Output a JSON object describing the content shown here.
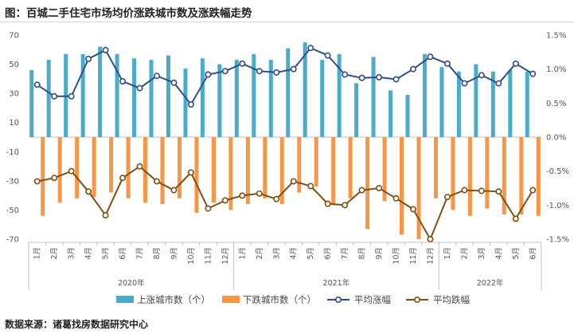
{
  "title": "图：百城二手住宅市场均价涨跌城市数及涨跌幅走势",
  "source": "数据来源：诸葛找房数据研究中心",
  "colors": {
    "up_bar": "#4aacc6",
    "down_bar": "#f79646",
    "avg_up_line": "#2f4f82",
    "avg_down_line": "#7f4f12"
  },
  "chart_data": {
    "type": "bar",
    "months": [
      "1月",
      "2月",
      "3月",
      "4月",
      "5月",
      "6月",
      "7月",
      "8月",
      "9月",
      "10月",
      "11月",
      "12月",
      "1月",
      "2月",
      "3月",
      "4月",
      "5月",
      "6月",
      "7月",
      "8月",
      "9月",
      "10月",
      "11月",
      "12月",
      "1月",
      "2月",
      "3月",
      "4月",
      "5月",
      "6月"
    ],
    "years": [
      {
        "label": "2020年",
        "span": 12
      },
      {
        "label": "2021年",
        "span": 12
      },
      {
        "label": "2022年",
        "span": 6
      }
    ],
    "y_left": {
      "min": -70,
      "max": 70,
      "ticks": [
        70,
        50,
        30,
        10,
        -10,
        -30,
        -50,
        -70
      ]
    },
    "y_right": {
      "min": -1.5,
      "max": 1.5,
      "ticks": [
        "1.5%",
        "1.0%",
        "0.5%",
        "0.0%",
        "-0.5%",
        "-1.0%",
        "-1.5%"
      ]
    },
    "series": [
      {
        "name": "上涨城市数（个）",
        "type": "bar",
        "axis": "left",
        "values": [
          46,
          53,
          57,
          57,
          62,
          57,
          54,
          53,
          56,
          47,
          54,
          50,
          53,
          57,
          53,
          61,
          65,
          53,
          57,
          37,
          55,
          32,
          29,
          57,
          48,
          45,
          50,
          45,
          46,
          45
        ]
      },
      {
        "name": "下跌城市数（个）",
        "type": "bar",
        "axis": "left",
        "values": [
          -54,
          -45,
          -42,
          -41,
          -38,
          -42,
          -45,
          -46,
          -42,
          -52,
          -45,
          -50,
          -46,
          -42,
          -46,
          -38,
          -34,
          -46,
          -42,
          -63,
          -44,
          -67,
          -70,
          -42,
          -50,
          -54,
          -49,
          -53,
          -53,
          -54
        ]
      },
      {
        "name": "平均涨幅",
        "type": "line",
        "axis": "right",
        "values": [
          0.77,
          0.6,
          0.6,
          1.15,
          1.28,
          0.82,
          0.72,
          0.9,
          0.8,
          0.48,
          0.92,
          0.97,
          1.08,
          0.97,
          0.95,
          1.0,
          1.31,
          1.2,
          0.92,
          0.87,
          0.88,
          0.85,
          1.0,
          1.18,
          1.08,
          0.79,
          0.91,
          0.79,
          1.08,
          0.93
        ]
      },
      {
        "name": "平均跌幅",
        "type": "line",
        "axis": "right",
        "values": [
          -0.65,
          -0.6,
          -0.5,
          -0.8,
          -1.15,
          -0.6,
          -0.43,
          -0.65,
          -0.78,
          -0.52,
          -1.05,
          -0.93,
          -0.86,
          -0.83,
          -0.91,
          -0.65,
          -0.72,
          -0.98,
          -1.0,
          -0.78,
          -0.75,
          -0.9,
          -1.06,
          -1.5,
          -0.88,
          -0.78,
          -0.79,
          -0.8,
          -1.2,
          -0.78
        ]
      }
    ]
  }
}
